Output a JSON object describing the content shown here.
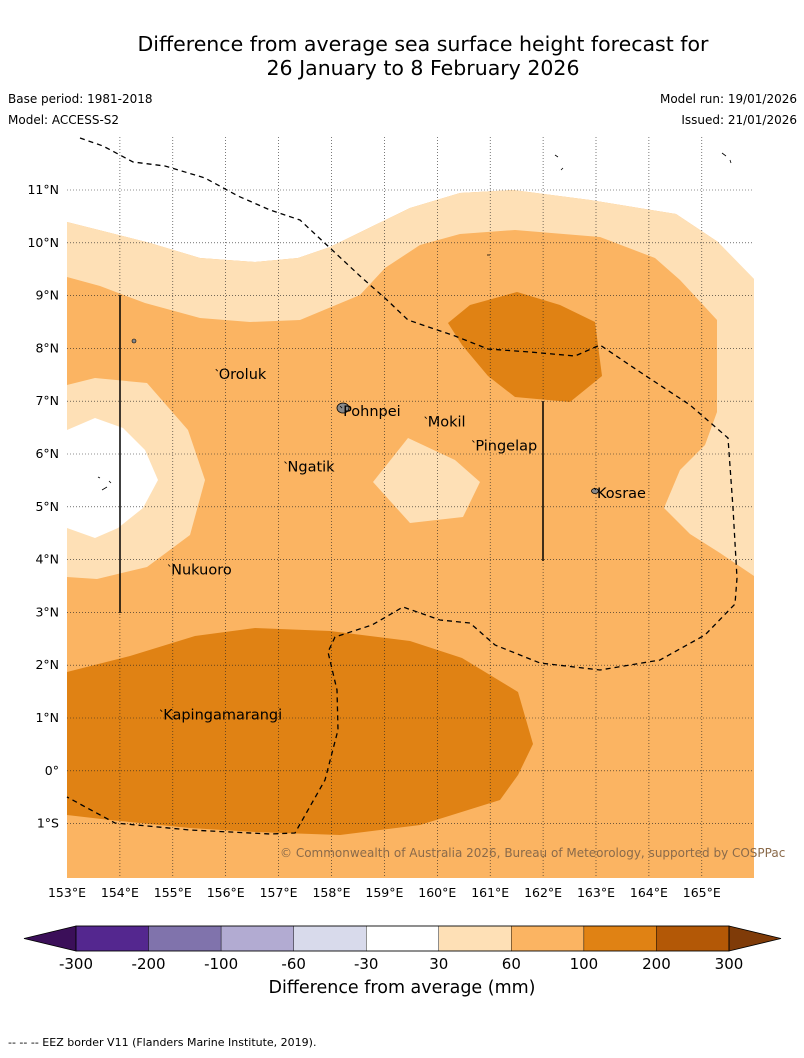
{
  "title": {
    "line1": "Difference from average sea surface height forecast for",
    "line2": "26 January to 8 February 2026"
  },
  "meta": {
    "base_period": "Base period: 1981-2018",
    "model": "Model: ACCESS-S2",
    "model_run": "Model run: 19/01/2026",
    "issued": "Issued: 21/01/2026"
  },
  "map": {
    "lat_labels": [
      "11°N",
      "10°N",
      "9°N",
      "8°N",
      "7°N",
      "6°N",
      "5°N",
      "4°N",
      "3°N",
      "2°N",
      "1°N",
      "0°",
      "1°S"
    ],
    "lon_labels": [
      "153°E",
      "154°E",
      "155°E",
      "156°E",
      "157°E",
      "158°E",
      "159°E",
      "160°E",
      "161°E",
      "162°E",
      "163°E",
      "164°E",
      "165°E"
    ],
    "places": [
      {
        "name": "Oroluk",
        "lon": 155.85,
        "lat": 7.55
      },
      {
        "name": "Pohnpei",
        "lon": 158.2,
        "lat": 6.85
      },
      {
        "name": "Mokil",
        "lon": 159.8,
        "lat": 6.65
      },
      {
        "name": "Pingelap",
        "lon": 160.7,
        "lat": 6.2
      },
      {
        "name": "Ngatik",
        "lon": 157.15,
        "lat": 5.8
      },
      {
        "name": "Kosrae",
        "lon": 163.0,
        "lat": 5.3
      },
      {
        "name": "Nukuoro",
        "lon": 154.95,
        "lat": 3.85
      },
      {
        "name": "Kapingamarangi",
        "lon": 154.8,
        "lat": 1.1
      }
    ],
    "copyright": "© Commonwealth of Australia 2026, Bureau of Meteorology, supported by COSPPac"
  },
  "legend": {
    "tick_labels": [
      "-300",
      "-200",
      "-100",
      "-60",
      "-30",
      "30",
      "60",
      "100",
      "200",
      "300"
    ],
    "colors": [
      "#3b0f59",
      "#54278f",
      "#8073ac",
      "#b2abd2",
      "#d8daeb",
      "#ffffff",
      "#fee0b6",
      "#fbb462",
      "#e08214",
      "#b35806",
      "#7f3b08"
    ],
    "title": "Difference from average (mm)"
  },
  "footer": "--  --  -- EEZ border V11 (Flanders Marine Institute, 2019)."
}
